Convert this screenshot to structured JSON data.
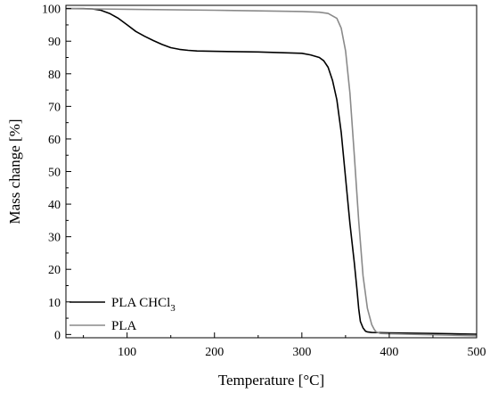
{
  "chart_data": {
    "type": "line",
    "xlabel": "Temperature [°C]",
    "ylabel": "Mass change [%]",
    "xlim": [
      30,
      500
    ],
    "ylim": [
      -1,
      101
    ],
    "xticks": [
      100,
      200,
      300,
      400,
      500
    ],
    "yticks": [
      0,
      10,
      20,
      30,
      40,
      50,
      60,
      70,
      80,
      90,
      100
    ],
    "grid": false,
    "legend_position": "bottom-left",
    "series": [
      {
        "name": "PLA CHCl",
        "name_subscript": "3",
        "color": "#000000",
        "x": [
          30,
          50,
          60,
          70,
          80,
          90,
          100,
          110,
          120,
          130,
          140,
          150,
          160,
          170,
          180,
          200,
          250,
          300,
          310,
          320,
          325,
          330,
          335,
          340,
          345,
          350,
          355,
          360,
          363,
          365,
          367,
          370,
          373,
          375,
          380,
          400,
          450,
          500
        ],
        "y": [
          100,
          100,
          99.9,
          99.5,
          98.5,
          97,
          95,
          93,
          91.5,
          90.2,
          89,
          88,
          87.5,
          87.2,
          87,
          86.9,
          86.7,
          86.3,
          85.8,
          85,
          84,
          82,
          78,
          72,
          62,
          48,
          34,
          22,
          14,
          8,
          4,
          2,
          1,
          0.8,
          0.6,
          0.5,
          0.3,
          0.1
        ]
      },
      {
        "name": "PLA",
        "color": "#8a8a8a",
        "x": [
          30,
          100,
          200,
          250,
          300,
          320,
          330,
          340,
          345,
          350,
          355,
          360,
          365,
          370,
          375,
          380,
          383,
          385,
          390,
          400,
          450,
          500
        ],
        "y": [
          100,
          99.8,
          99.5,
          99.3,
          99.1,
          98.9,
          98.5,
          97,
          94,
          87,
          74,
          55,
          35,
          18,
          8,
          3,
          1.5,
          0.8,
          0.3,
          0.2,
          -0.1,
          -0.4
        ]
      }
    ]
  }
}
